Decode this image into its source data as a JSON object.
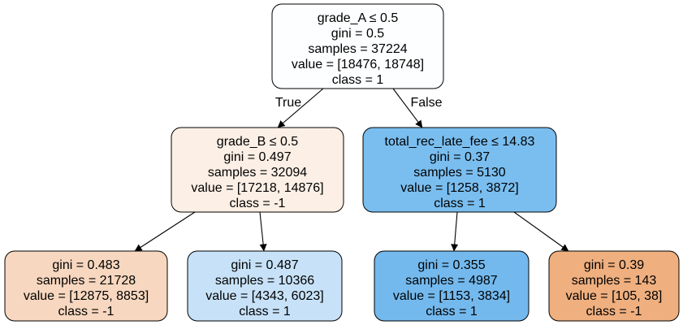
{
  "tree": {
    "colors": {
      "root": "#fdfeff",
      "left": "#fcefe5",
      "right": "#7abef0",
      "left_left": "#f7d7bf",
      "left_right": "#c7e2f8",
      "right_left": "#73b9ee",
      "right_right": "#efaf7f"
    },
    "nodes": {
      "root": {
        "lines": [
          "grade_A ≤ 0.5",
          "gini = 0.5",
          "samples = 37224",
          "value = [18476, 18748]",
          "class = 1"
        ]
      },
      "left": {
        "lines": [
          "grade_B ≤ 0.5",
          "gini = 0.497",
          "samples = 32094",
          "value = [17218, 14876]",
          "class = -1"
        ]
      },
      "right": {
        "lines": [
          "total_rec_late_fee ≤ 14.83",
          "gini = 0.37",
          "samples = 5130",
          "value = [1258, 3872]",
          "class = 1"
        ]
      },
      "left_left": {
        "lines": [
          "gini = 0.483",
          "samples = 21728",
          "value = [12875, 8853]",
          "class = -1"
        ]
      },
      "left_right": {
        "lines": [
          "gini = 0.487",
          "samples = 10366",
          "value = [4343, 6023]",
          "class = 1"
        ]
      },
      "right_left": {
        "lines": [
          "gini = 0.355",
          "samples = 4987",
          "value = [1153, 3834]",
          "class = 1"
        ]
      },
      "right_right": {
        "lines": [
          "gini = 0.39",
          "samples = 143",
          "value = [105, 38]",
          "class = -1"
        ]
      }
    },
    "edge_labels": {
      "true": "True",
      "false": "False"
    }
  }
}
